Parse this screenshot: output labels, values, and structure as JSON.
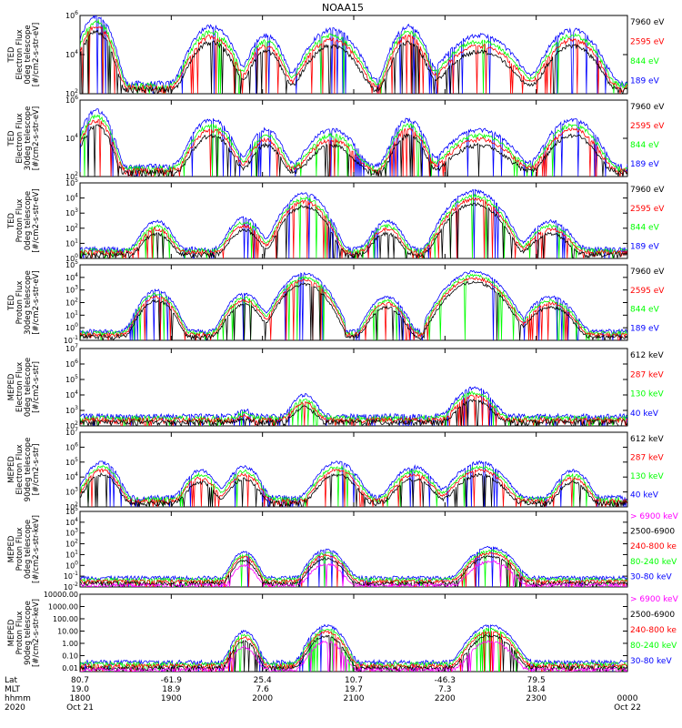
{
  "title": "NOAA15",
  "colors": {
    "blue": "#0000ff",
    "red": "#ff0000",
    "green": "#00ff00",
    "black": "#000000",
    "magenta": "#ff00ff"
  },
  "chart_data": [
    {
      "type": "line",
      "scale": "log",
      "ylim": [
        100,
        1000000
      ],
      "ylabel": [
        "TED",
        "Electron Flux",
        "0deg telescope",
        "[#/cm2-s-str-eV]"
      ],
      "yticks": [
        "10^2",
        "10^4",
        "10^6"
      ],
      "legend": [
        {
          "label": "7960 eV",
          "color": "black"
        },
        {
          "label": "2595 eV",
          "color": "red"
        },
        {
          "label": "844 eV",
          "color": "green"
        },
        {
          "label": "189 eV",
          "color": "blue"
        }
      ],
      "events": [
        {
          "t": 0.03,
          "w": 0.018,
          "peak": 1000000
        },
        {
          "t": 0.24,
          "w": 0.025,
          "peak": 300000
        },
        {
          "t": 0.34,
          "w": 0.02,
          "peak": 100000
        },
        {
          "t": 0.46,
          "w": 0.03,
          "peak": 200000
        },
        {
          "t": 0.6,
          "w": 0.02,
          "peak": 300000
        },
        {
          "t": 0.73,
          "w": 0.04,
          "peak": 100000
        },
        {
          "t": 0.9,
          "w": 0.03,
          "peak": 200000
        }
      ]
    },
    {
      "type": "line",
      "scale": "log",
      "ylim": [
        100,
        1000000
      ],
      "ylabel": [
        "TED",
        "Electron Flux",
        "30deg telescope",
        "[#/cm2-s-str-eV]"
      ],
      "yticks": [
        "10^2",
        "10^4",
        "10^6"
      ],
      "legend": [
        {
          "label": "7960 eV",
          "color": "black"
        },
        {
          "label": "2595 eV",
          "color": "red"
        },
        {
          "label": "844 eV",
          "color": "green"
        },
        {
          "label": "189 eV",
          "color": "blue"
        }
      ],
      "events": [
        {
          "t": 0.03,
          "w": 0.018,
          "peak": 300000
        },
        {
          "t": 0.24,
          "w": 0.025,
          "peak": 100000
        },
        {
          "t": 0.34,
          "w": 0.02,
          "peak": 30000
        },
        {
          "t": 0.46,
          "w": 0.03,
          "peak": 30000
        },
        {
          "t": 0.6,
          "w": 0.02,
          "peak": 100000
        },
        {
          "t": 0.73,
          "w": 0.04,
          "peak": 30000
        },
        {
          "t": 0.9,
          "w": 0.03,
          "peak": 100000
        }
      ]
    },
    {
      "type": "line",
      "scale": "log",
      "ylim": [
        1,
        100000
      ],
      "ylabel": [
        "TED",
        "Proton Flux",
        "0deg telescope",
        "[#/cm2-s-str-eV]"
      ],
      "yticks": [
        "10^0",
        "10^1",
        "10^2",
        "10^3",
        "10^4",
        "10^5"
      ],
      "legend": [
        {
          "label": "7960 eV",
          "color": "black"
        },
        {
          "label": "2595 eV",
          "color": "red"
        },
        {
          "label": "844 eV",
          "color": "green"
        },
        {
          "label": "189 eV",
          "color": "blue"
        }
      ],
      "events": [
        {
          "t": 0.14,
          "w": 0.02,
          "peak": 300
        },
        {
          "t": 0.3,
          "w": 0.02,
          "peak": 500
        },
        {
          "t": 0.41,
          "w": 0.025,
          "peak": 20000
        },
        {
          "t": 0.56,
          "w": 0.02,
          "peak": 300
        },
        {
          "t": 0.72,
          "w": 0.03,
          "peak": 30000
        },
        {
          "t": 0.86,
          "w": 0.025,
          "peak": 300
        }
      ]
    },
    {
      "type": "line",
      "scale": "log",
      "ylim": [
        0.1,
        100000
      ],
      "ylabel": [
        "TED",
        "Proton Flux",
        "30deg telescope",
        "[#/cm2-s-str-eV]"
      ],
      "yticks": [
        "10^-1",
        "10^0",
        "10^1",
        "10^2",
        "10^3",
        "10^4",
        "10^5"
      ],
      "legend": [
        {
          "label": "7960 eV",
          "color": "black"
        },
        {
          "label": "2595 eV",
          "color": "red"
        },
        {
          "label": "844 eV",
          "color": "green"
        },
        {
          "label": "189 eV",
          "color": "blue"
        }
      ],
      "events": [
        {
          "t": 0.14,
          "w": 0.02,
          "peak": 1000
        },
        {
          "t": 0.3,
          "w": 0.02,
          "peak": 500
        },
        {
          "t": 0.41,
          "w": 0.025,
          "peak": 20000
        },
        {
          "t": 0.56,
          "w": 0.02,
          "peak": 300
        },
        {
          "t": 0.72,
          "w": 0.03,
          "peak": 30000
        },
        {
          "t": 0.86,
          "w": 0.025,
          "peak": 300
        }
      ]
    },
    {
      "type": "line",
      "scale": "log",
      "ylim": [
        100,
        10000000
      ],
      "ylabel": [
        "MEPED",
        "Electron Flux",
        "0deg telescope",
        "[#/cm2-s-str]"
      ],
      "yticks": [
        "10^2",
        "10^3",
        "10^4",
        "10^5",
        "10^6",
        "10^7"
      ],
      "legend": [
        {
          "label": "612 keV",
          "color": "black"
        },
        {
          "label": "287 keV",
          "color": "red"
        },
        {
          "label": "130 keV",
          "color": "green"
        },
        {
          "label": "40 keV",
          "color": "blue"
        }
      ],
      "events": [
        {
          "t": 0.3,
          "w": 0.012,
          "peak": 800
        },
        {
          "t": 0.41,
          "w": 0.018,
          "peak": 10000
        },
        {
          "t": 0.72,
          "w": 0.025,
          "peak": 30000
        }
      ]
    },
    {
      "type": "line",
      "scale": "log",
      "ylim": [
        100,
        10000000
      ],
      "ylabel": [
        "MEPED",
        "Electron Flux",
        "90deg telescope",
        "[#/cm2-s-str]"
      ],
      "yticks": [
        "10^2",
        "10^3",
        "10^4",
        "10^5",
        "10^6",
        "10^7"
      ],
      "legend": [
        {
          "label": "612 keV",
          "color": "black"
        },
        {
          "label": "287 keV",
          "color": "red"
        },
        {
          "label": "130 keV",
          "color": "green"
        },
        {
          "label": "40 keV",
          "color": "blue"
        }
      ],
      "events": [
        {
          "t": 0.04,
          "w": 0.02,
          "peak": 100000
        },
        {
          "t": 0.22,
          "w": 0.02,
          "peak": 30000
        },
        {
          "t": 0.3,
          "w": 0.02,
          "peak": 50000
        },
        {
          "t": 0.47,
          "w": 0.025,
          "peak": 100000
        },
        {
          "t": 0.61,
          "w": 0.025,
          "peak": 50000
        },
        {
          "t": 0.73,
          "w": 0.03,
          "peak": 100000
        },
        {
          "t": 0.9,
          "w": 0.02,
          "peak": 30000
        }
      ]
    },
    {
      "type": "line",
      "scale": "log",
      "ylim": [
        0.01,
        100000
      ],
      "ylabel": [
        "MEPED",
        "Proton Flux",
        "0deg telescope",
        "[#/cm2-s-str-keV]"
      ],
      "yticks": [
        "10^-2",
        "10^-1",
        "10^0",
        "10^1",
        "10^2",
        "10^3",
        "10^4",
        "10^5"
      ],
      "legend": [
        {
          "label": "> 6900 keV",
          "color": "magenta"
        },
        {
          "label": "2500-6900",
          "color": "black"
        },
        {
          "label": "240-800 ke",
          "color": "red"
        },
        {
          "label": "80-240 keV",
          "color": "green"
        },
        {
          "label": "30-80 keV",
          "color": "blue"
        }
      ],
      "events": [
        {
          "t": 0.3,
          "w": 0.015,
          "peak": 20
        },
        {
          "t": 0.45,
          "w": 0.02,
          "peak": 30
        },
        {
          "t": 0.75,
          "w": 0.025,
          "peak": 50
        }
      ]
    },
    {
      "type": "line",
      "scale": "log",
      "ylim": [
        0.005,
        10000
      ],
      "ylabel": [
        "MEPED",
        "Proton Flux",
        "90deg telescope",
        "[#/cm2-s-str-keV]"
      ],
      "yticks": [
        "0.01",
        "0.10",
        "1.00",
        "10.00",
        "100.00",
        "1000.00",
        "10000.00"
      ],
      "legend": [
        {
          "label": "> 6900 keV",
          "color": "magenta"
        },
        {
          "label": "2500-6900",
          "color": "black"
        },
        {
          "label": "240-800 ke",
          "color": "red"
        },
        {
          "label": "80-240 keV",
          "color": "green"
        },
        {
          "label": "30-80 keV",
          "color": "blue"
        }
      ],
      "events": [
        {
          "t": 0.3,
          "w": 0.015,
          "peak": 10
        },
        {
          "t": 0.45,
          "w": 0.02,
          "peak": 30
        },
        {
          "t": 0.75,
          "w": 0.025,
          "peak": 30
        }
      ]
    }
  ],
  "x_axis": {
    "row_labels": [
      "Lat",
      "MLT",
      "hhmm",
      "2020"
    ],
    "ticks": [
      {
        "lat": "80.7",
        "mlt": "19.0",
        "hhmm": "1800",
        "date": "Oct 21"
      },
      {
        "lat": "-61.9",
        "mlt": "18.9",
        "hhmm": "1900",
        "date": ""
      },
      {
        "lat": "25.4",
        "mlt": "7.6",
        "hhmm": "2000",
        "date": ""
      },
      {
        "lat": "10.7",
        "mlt": "19.7",
        "hhmm": "2100",
        "date": ""
      },
      {
        "lat": "-46.3",
        "mlt": "7.3",
        "hhmm": "2200",
        "date": ""
      },
      {
        "lat": "79.5",
        "mlt": "18.4",
        "hhmm": "2300",
        "date": ""
      },
      {
        "lat": "",
        "mlt": "",
        "hhmm": "0000",
        "date": "Oct 22"
      }
    ]
  }
}
